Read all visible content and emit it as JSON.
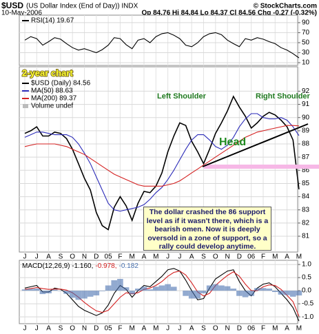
{
  "header": {
    "title": "$USD",
    "subtitle": "(US Dollar Index (End of Day)) INDX",
    "date": "10-May-2006",
    "quote": "Op 84.76 Hi 84.84 Lo 84.37 Cl 84.56 Chg -0.27 (-0.32%)",
    "source": "© StockCharts.com"
  },
  "chart_data": [
    {
      "type": "line",
      "ylim": [
        4.5,
        105
      ],
      "yticks": [
        10,
        30,
        50,
        70,
        90
      ],
      "grid": true,
      "series": [
        {
          "name": "RSI(14) 19.67",
          "color": "#000000",
          "values": [
            55,
            62,
            58,
            45,
            52,
            60,
            57,
            48,
            40,
            35,
            38,
            34,
            30,
            36,
            45,
            60,
            58,
            46,
            38,
            55,
            58,
            50,
            62,
            68,
            70,
            65,
            58,
            45,
            42,
            50,
            62,
            68,
            70,
            66,
            55,
            48,
            42,
            58,
            55,
            60,
            57,
            52,
            48,
            40,
            35,
            28,
            19.67
          ]
        }
      ]
    },
    {
      "type": "line",
      "ylim": [
        79.8,
        93.85
      ],
      "yticks": [
        81,
        82,
        83,
        84,
        85,
        86,
        87,
        88,
        89,
        90,
        91,
        92
      ],
      "grid": true,
      "categories": [
        "J",
        null,
        "J",
        null,
        "A",
        null,
        "S",
        null,
        "O",
        null,
        "N",
        null,
        "D",
        null,
        "05",
        null,
        "F",
        null,
        "M",
        null,
        "A",
        null,
        "M",
        null,
        "J",
        null,
        "J",
        null,
        "A",
        null,
        "S",
        null,
        "O",
        null,
        "N",
        null,
        "D",
        null,
        "06",
        null,
        "F",
        null,
        "M",
        null,
        "A",
        null,
        "M"
      ],
      "label": "2-year chart",
      "volume_label": "Volume undef",
      "annotations": [
        "Left Shoulder",
        "Head",
        "Right Shoulder"
      ],
      "note": "The dollar crashed the 86 support level as if it wasn't there, which is a bearish omen. Now it is deeply oversold in a zone of support, so a rally could develop anytime.",
      "series": [
        {
          "name": "$USD (Daily) 84.56",
          "color": "#000000",
          "values": [
            88.8,
            89.0,
            89.3,
            88.6,
            88.6,
            88.9,
            88.8,
            88.4,
            87.6,
            86.5,
            85.4,
            84.5,
            82.8,
            81.8,
            81.5,
            83.2,
            84.0,
            83.3,
            82.2,
            83.5,
            84.4,
            84.3,
            84.8,
            85.8,
            87.4,
            88.6,
            89.6,
            89.4,
            88.2,
            87.4,
            86.5,
            87.6,
            88.8,
            89.6,
            90.5,
            91.6,
            90.8,
            90.1,
            89.2,
            89.6,
            90.1,
            90.4,
            90.2,
            89.8,
            89.3,
            88.3,
            84.56
          ]
        },
        {
          "name": "MA(50) 88.63",
          "color": "#2a2ab8",
          "values": [
            88.5,
            88.7,
            88.9,
            88.9,
            88.8,
            88.7,
            88.7,
            88.7,
            88.5,
            88.0,
            87.3,
            86.5,
            85.5,
            84.5,
            83.5,
            83.0,
            82.9,
            83.0,
            83.1,
            83.2,
            83.4,
            83.8,
            84.3,
            84.7,
            85.3,
            86.0,
            86.8,
            87.6,
            88.3,
            88.7,
            88.7,
            88.3,
            87.8,
            87.6,
            87.9,
            88.5,
            89.3,
            89.9,
            90.3,
            90.3,
            90.0,
            89.9,
            89.9,
            90.0,
            89.8,
            89.3,
            88.63
          ]
        },
        {
          "name": "MA(200) 89.37",
          "color": "#d42020",
          "values": [
            87.8,
            87.9,
            88.0,
            88.0,
            88.0,
            88.0,
            87.9,
            87.8,
            87.6,
            87.4,
            87.2,
            86.9,
            86.6,
            86.3,
            86.0,
            85.7,
            85.5,
            85.3,
            85.1,
            84.9,
            84.8,
            84.8,
            84.8,
            84.8,
            84.9,
            85.0,
            85.2,
            85.5,
            85.8,
            86.1,
            86.4,
            86.7,
            87.0,
            87.3,
            87.6,
            87.9,
            88.2,
            88.5,
            88.7,
            88.9,
            89.0,
            89.1,
            89.2,
            89.3,
            89.4,
            89.4,
            89.37
          ]
        }
      ]
    },
    {
      "type": "line",
      "ylim": [
        -1.26,
        1.16
      ],
      "grid": true,
      "legend": "inline",
      "yticks": [
        {
          "value": 1,
          "label": "1.0"
        },
        {
          "value": 0.5,
          "label": "0.5"
        },
        {
          "value": 0,
          "label": "0.0"
        },
        {
          "value": -0.5,
          "label": "-0.5"
        },
        {
          "value": -1,
          "label": "-1.0"
        }
      ],
      "categories": [
        "J",
        null,
        "J",
        null,
        "A",
        null,
        "S",
        null,
        "O",
        null,
        "N",
        null,
        "D",
        null,
        "05",
        null,
        "F",
        null,
        "M",
        null,
        "A",
        null,
        "M",
        null,
        "J",
        null,
        "J",
        null,
        "A",
        null,
        "S",
        null,
        "O",
        null,
        "N",
        null,
        "D",
        null,
        "06",
        null,
        "F",
        null,
        "M",
        null,
        "A",
        null,
        "M"
      ],
      "series": [
        {
          "name": "MACD(12,26,9) -1.160,",
          "color": "#000000",
          "values": [
            0.1,
            0.15,
            0.2,
            -0.05,
            -0.05,
            0.1,
            0.05,
            -0.1,
            -0.35,
            -0.6,
            -0.75,
            -0.85,
            -0.95,
            -0.85,
            -0.55,
            -0.1,
            0.2,
            0.05,
            -0.25,
            0.0,
            0.2,
            0.15,
            0.35,
            0.55,
            0.8,
            0.85,
            0.75,
            0.4,
            0.0,
            -0.35,
            -0.3,
            0.1,
            0.45,
            0.6,
            0.75,
            0.8,
            0.35,
            0.0,
            -0.2,
            0.1,
            0.25,
            0.3,
            0.15,
            -0.1,
            -0.35,
            -0.65,
            -1.16
          ]
        },
        {
          "name": "-0.978,",
          "color": "#d42020",
          "values": [
            0.05,
            0.08,
            0.12,
            0.08,
            0.05,
            0.06,
            0.06,
            0.02,
            -0.08,
            -0.25,
            -0.45,
            -0.62,
            -0.77,
            -0.83,
            -0.75,
            -0.5,
            -0.25,
            -0.08,
            -0.12,
            -0.08,
            0.05,
            0.1,
            0.2,
            0.35,
            0.55,
            0.7,
            0.75,
            0.6,
            0.3,
            -0.05,
            -0.2,
            -0.1,
            0.2,
            0.4,
            0.58,
            0.72,
            0.55,
            0.25,
            0.0,
            0.0,
            0.15,
            0.22,
            0.2,
            0.05,
            -0.18,
            -0.42,
            -0.978
          ]
        },
        {
          "name": "-0.182",
          "color": "#4a72b0",
          "style": "histogram",
          "values": [
            0.05,
            0.07,
            0.08,
            -0.13,
            -0.1,
            0.04,
            -0.01,
            -0.12,
            -0.27,
            -0.35,
            -0.3,
            -0.23,
            -0.18,
            -0.02,
            0.2,
            0.4,
            0.45,
            0.13,
            -0.13,
            0.08,
            0.15,
            0.05,
            0.15,
            0.2,
            0.25,
            0.15,
            0.0,
            -0.2,
            -0.3,
            -0.3,
            -0.1,
            0.2,
            0.25,
            0.2,
            0.17,
            0.08,
            -0.2,
            -0.25,
            -0.2,
            0.1,
            0.1,
            0.08,
            -0.05,
            -0.15,
            -0.17,
            -0.23,
            -0.182
          ]
        }
      ]
    }
  ]
}
